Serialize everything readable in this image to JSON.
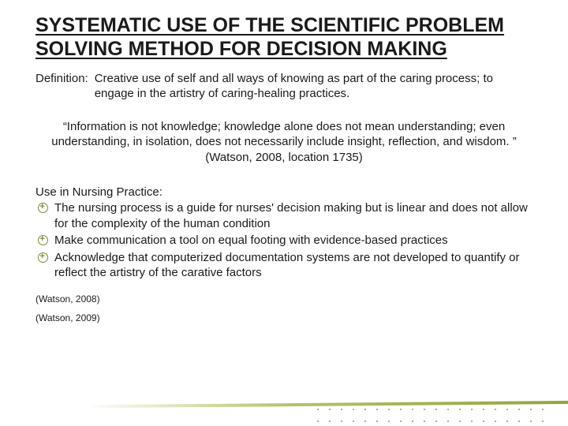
{
  "title": "SYSTEMATIC USE OF THE SCIENTIFIC PROBLEM SOLVING METHOD FOR DECISION MAKING",
  "definition": {
    "label": "Definition:",
    "text": "Creative use of self and all ways of knowing as part of the caring process; to engage in the artistry of caring-healing practices."
  },
  "quote": "“Information is not knowledge; knowledge alone does not mean understanding; even understanding, in isolation, does not necessarily include insight, reflection, and wisdom. ”  (Watson, 2008, location 1735)",
  "use_label": "Use in Nursing Practice:",
  "bullets": [
    "The nursing process is a guide for nurses' decision making but is linear and does not allow for the complexity of the human condition",
    "Make communication a tool on equal footing with evidence-based practices",
    "Acknowledge that computerized documentation systems are not developed to quantify or reflect the artistry of the carative factors"
  ],
  "citations": [
    "(Watson, 2008)",
    "(Watson, 2009)"
  ],
  "colors": {
    "text": "#1a1a1a",
    "accent": "#8fa342",
    "accent_light": "#b4c46a",
    "background": "#ffffff"
  },
  "fonts": {
    "title_size": 25,
    "body_size": 15,
    "citation_size": 12
  }
}
